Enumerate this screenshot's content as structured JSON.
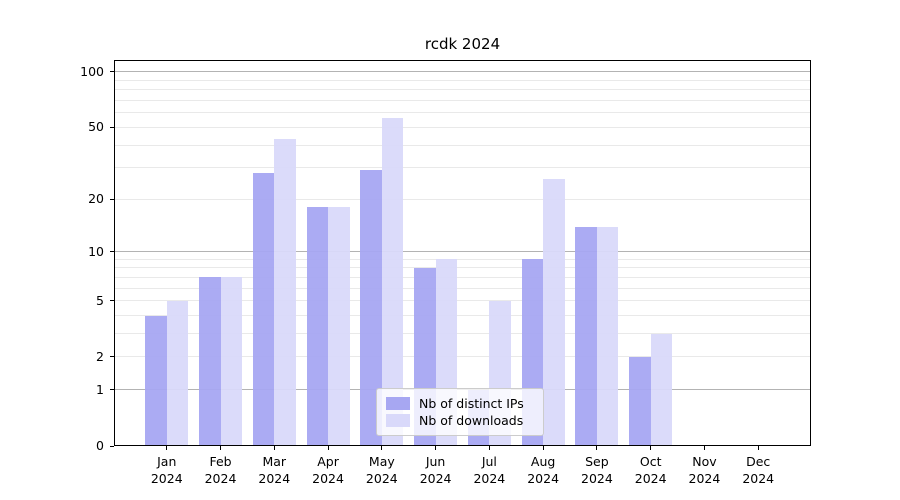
{
  "chart_data": {
    "type": "bar",
    "title": "rcdk 2024",
    "categories": [
      "Jan",
      "Feb",
      "Mar",
      "Apr",
      "May",
      "Jun",
      "Jul",
      "Aug",
      "Sep",
      "Oct",
      "Nov",
      "Dec"
    ],
    "year_label": "2024",
    "series": [
      {
        "name": "Nb of distinct IPs",
        "color": "#a7a7f2",
        "values": [
          4,
          7,
          28,
          18,
          29,
          8,
          1,
          9,
          14,
          2,
          0,
          0
        ]
      },
      {
        "name": "Nb of downloads",
        "color": "#d9d9fa",
        "values": [
          5,
          7,
          43,
          18,
          56,
          9,
          5,
          26,
          14,
          3,
          0,
          0
        ]
      }
    ],
    "y_ticks": [
      0,
      1,
      2,
      5,
      10,
      20,
      50,
      100
    ],
    "y_scale": "log10(1+x)",
    "ylim": [
      0,
      116
    ],
    "xlabel": "",
    "ylabel": "",
    "grid": true,
    "legend_position": "bottom-center",
    "colors": {
      "background": "#ffffff",
      "grid_minor": "#e9e9e9",
      "grid_major": "#b3b3b3",
      "axis": "#000000"
    }
  }
}
